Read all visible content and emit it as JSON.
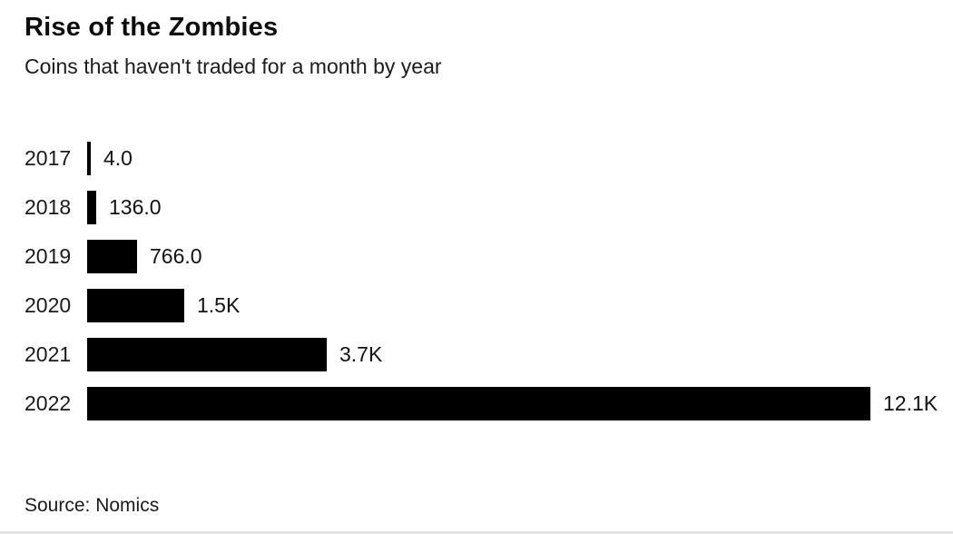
{
  "header": {
    "title": "Rise of the Zombies",
    "subtitle": "Coins that haven't traded for a month by year"
  },
  "footer": {
    "source": "Source: Nomics"
  },
  "chart_data": {
    "type": "bar",
    "orientation": "horizontal",
    "title": "Rise of the Zombies",
    "subtitle": "Coins that haven't traded for a month by year",
    "categories": [
      "2017",
      "2018",
      "2019",
      "2020",
      "2021",
      "2022"
    ],
    "values": [
      4,
      136,
      766,
      1500,
      3700,
      12100
    ],
    "value_labels": [
      "4.0",
      "136.0",
      "766.0",
      "1.5K",
      "3.7K",
      "12.1K"
    ],
    "xlabel": "",
    "ylabel": "",
    "xlim": [
      0,
      12100
    ],
    "grid": false,
    "legend": "none",
    "bar_color": "#000000",
    "source": "Source: Nomics"
  }
}
